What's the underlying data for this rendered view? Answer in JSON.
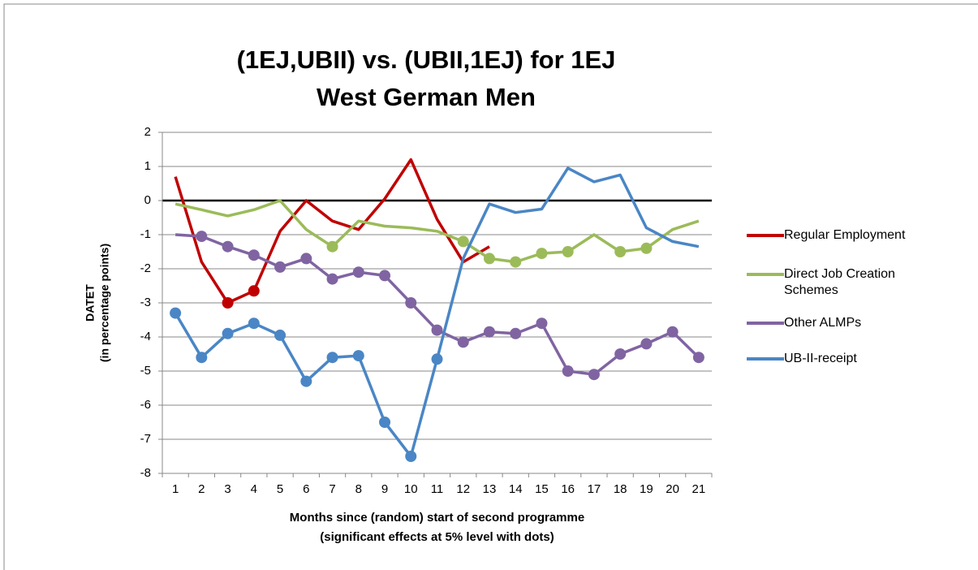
{
  "chart_data": {
    "type": "line",
    "title": [
      "(1EJ,UBII) vs. (UBII,1EJ) for 1EJ",
      "West German Men"
    ],
    "y_label": [
      "DATET",
      "(in percentage points)"
    ],
    "x_label": [
      "Months since (random) start of second programme",
      "(significant  effects at 5% level with dots)"
    ],
    "categories": [
      "1",
      "2",
      "3",
      "4",
      "5",
      "6",
      "7",
      "8",
      "9",
      "10",
      "11",
      "12",
      "13",
      "14",
      "15",
      "16",
      "17",
      "18",
      "19",
      "20",
      "21"
    ],
    "ylim": [
      -8,
      2
    ],
    "yticks": [
      -8,
      -7,
      -6,
      -5,
      -4,
      -3,
      -2,
      -1,
      0,
      1,
      2
    ],
    "grid": true,
    "legend": "right",
    "series": [
      {
        "name": "Regular Employment",
        "color": "#c00000",
        "values": [
          0.7,
          -1.8,
          -3.0,
          -2.65,
          -0.9,
          0,
          -0.6,
          -0.85,
          0.05,
          1.2,
          -0.55,
          -1.8,
          -1.35,
          null,
          null,
          null,
          null,
          null,
          null,
          null,
          null
        ],
        "markers": [
          false,
          false,
          true,
          true,
          false,
          false,
          false,
          false,
          false,
          false,
          false,
          false,
          false,
          false,
          false,
          false,
          false,
          false,
          false,
          false,
          false
        ]
      },
      {
        "name": "Direct Job Creation Schemes",
        "color": "#9bbb59",
        "values": [
          -0.1,
          -0.27,
          -0.45,
          -0.27,
          0,
          -0.85,
          -1.35,
          -0.6,
          -0.75,
          -0.8,
          -0.9,
          -1.2,
          -1.7,
          -1.8,
          -1.55,
          -1.5,
          -1.0,
          -1.5,
          -1.4,
          -0.85,
          -0.6
        ],
        "markers": [
          false,
          false,
          false,
          false,
          false,
          false,
          true,
          false,
          false,
          false,
          false,
          true,
          true,
          true,
          true,
          true,
          false,
          true,
          true,
          false,
          false
        ]
      },
      {
        "name": "Other ALMPs",
        "color": "#8064a2",
        "values": [
          -1.0,
          -1.05,
          -1.35,
          -1.6,
          -1.95,
          -1.7,
          -2.3,
          -2.1,
          -2.2,
          -3.0,
          -3.8,
          -4.15,
          -3.85,
          -3.9,
          -3.6,
          -5.0,
          -5.1,
          -4.5,
          -4.2,
          -3.85,
          -4.6
        ],
        "markers": [
          false,
          true,
          true,
          true,
          true,
          true,
          true,
          true,
          true,
          true,
          true,
          true,
          true,
          true,
          true,
          true,
          true,
          true,
          true,
          true,
          true
        ]
      },
      {
        "name": "UB-II-receipt",
        "color": "#4a86c5",
        "values": [
          -3.3,
          -4.6,
          -3.9,
          -3.6,
          -3.95,
          -5.3,
          -4.6,
          -4.55,
          -6.5,
          -7.5,
          -4.65,
          -1.7,
          -0.1,
          -0.35,
          -0.25,
          0.95,
          0.55,
          0.75,
          -0.8,
          -1.2,
          -1.35
        ],
        "markers": [
          true,
          true,
          true,
          true,
          true,
          true,
          true,
          true,
          true,
          true,
          true,
          false,
          false,
          false,
          false,
          false,
          false,
          false,
          false,
          false,
          false
        ]
      }
    ]
  }
}
